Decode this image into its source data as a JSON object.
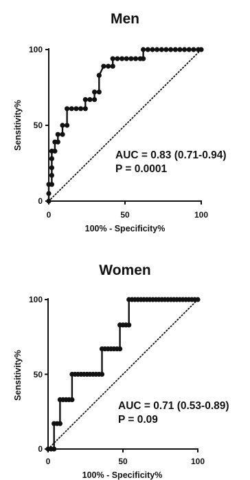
{
  "chart_data": [
    {
      "type": "line",
      "title": "Men",
      "xlabel": "100% - Specificity%",
      "ylabel": "Sensitivity%",
      "xlim": [
        0,
        100
      ],
      "ylim": [
        0,
        100
      ],
      "xticks": [
        "0",
        "50",
        "100"
      ],
      "yticks": [
        "0",
        "50",
        "100"
      ],
      "annotations": [
        "AUC = 0.83 (0.71-0.94)",
        "P = 0.0001"
      ],
      "reference_line": {
        "x": [
          0,
          100
        ],
        "y": [
          0,
          100
        ],
        "style": "dotted"
      },
      "series": [
        {
          "x": [
            0,
            0,
            0,
            2,
            2,
            2,
            2,
            2,
            4,
            4,
            6,
            6,
            9,
            9,
            12,
            12,
            15,
            18,
            21,
            24,
            24,
            27,
            30,
            30,
            33,
            33,
            36,
            39,
            42,
            42,
            45,
            48,
            51,
            54,
            57,
            60,
            62,
            62,
            65,
            68,
            71,
            74,
            77,
            80,
            83,
            86,
            89,
            92,
            95,
            98,
            100
          ],
          "y": [
            0,
            5,
            11,
            11,
            17,
            22,
            28,
            33,
            33,
            39,
            39,
            44,
            44,
            50,
            50,
            61,
            61,
            61,
            61,
            61,
            67,
            67,
            67,
            72,
            72,
            83,
            89,
            89,
            89,
            94,
            94,
            94,
            94,
            94,
            94,
            94,
            94,
            100,
            100,
            100,
            100,
            100,
            100,
            100,
            100,
            100,
            100,
            100,
            100,
            100,
            100
          ]
        }
      ]
    },
    {
      "type": "line",
      "title": "Women",
      "xlabel": "100% - Specificity%",
      "ylabel": "Sensitivity%",
      "xlim": [
        0,
        100
      ],
      "ylim": [
        0,
        100
      ],
      "xticks": [
        "0",
        "50",
        "100"
      ],
      "yticks": [
        "0",
        "50",
        "100"
      ],
      "annotations": [
        "AUC = 0.71 (0.53-0.89)",
        "P = 0.09"
      ],
      "reference_line": {
        "x": [
          0,
          100
        ],
        "y": [
          0,
          100
        ],
        "style": "dotted"
      },
      "series": [
        {
          "x": [
            0,
            2,
            4,
            4,
            6,
            8,
            8,
            10,
            12,
            14,
            16,
            16,
            18,
            20,
            22,
            24,
            26,
            28,
            30,
            32,
            34,
            36,
            36,
            38,
            40,
            42,
            44,
            46,
            48,
            48,
            50,
            52,
            54,
            54,
            56,
            58,
            60,
            62,
            64,
            66,
            68,
            70,
            72,
            74,
            76,
            78,
            80,
            82,
            84,
            86,
            88,
            90,
            92,
            94,
            96,
            98,
            100
          ],
          "y": [
            0,
            0,
            0,
            17,
            17,
            17,
            33,
            33,
            33,
            33,
            33,
            50,
            50,
            50,
            50,
            50,
            50,
            50,
            50,
            50,
            50,
            50,
            67,
            67,
            67,
            67,
            67,
            67,
            67,
            83,
            83,
            83,
            83,
            100,
            100,
            100,
            100,
            100,
            100,
            100,
            100,
            100,
            100,
            100,
            100,
            100,
            100,
            100,
            100,
            100,
            100,
            100,
            100,
            100,
            100,
            100,
            100
          ]
        }
      ]
    }
  ]
}
